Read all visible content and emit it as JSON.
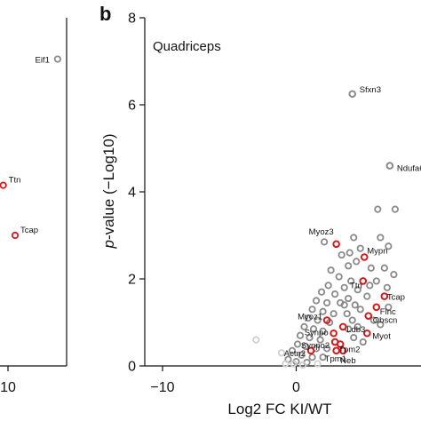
{
  "chart_data": [
    {
      "type": "scatter",
      "panel": "a",
      "x_ticks": [
        "10"
      ],
      "labeled_points": [
        {
          "label": "Eif1",
          "x": 14.2,
          "y": 7.05,
          "color": "grey"
        },
        {
          "label": "Ttn",
          "x": 9.6,
          "y": 4.15,
          "color": "red"
        },
        {
          "label": "Tcap",
          "x": 10.6,
          "y": 3.0,
          "color": "red"
        }
      ],
      "other_points": [
        {
          "x": 8.9,
          "y": 4.3,
          "color": "grey"
        }
      ]
    },
    {
      "type": "scatter",
      "panel": "b",
      "panel_label": "b",
      "title": "Quadriceps",
      "xlabel": "Log2 FC KI/WT",
      "ylabel_italic": "p",
      "ylabel_rest": "-value (−Log10)",
      "x_ticks": [
        "−10",
        "0",
        "10"
      ],
      "y_ticks": [
        "0",
        "2",
        "4",
        "6",
        "8"
      ],
      "xlim": [
        -12,
        11
      ],
      "ylim": [
        0,
        8
      ],
      "colors": {
        "grey": "#8a8a8a",
        "red": "#d7191c",
        "light": "#cfcfcf"
      },
      "labeled_points": [
        {
          "label": "Sfxn3",
          "x": 4.2,
          "y": 6.25,
          "color": "grey"
        },
        {
          "label": "Ndufa6",
          "x": 7.0,
          "y": 4.6,
          "color": "grey"
        },
        {
          "label": "Myoz3",
          "x": 3.0,
          "y": 2.8,
          "color": "red"
        },
        {
          "label": "Mypn",
          "x": 5.1,
          "y": 2.5,
          "color": "red"
        },
        {
          "label": "Ttn",
          "x": 5.0,
          "y": 1.95,
          "color": "red"
        },
        {
          "label": "Tcap",
          "x": 6.6,
          "y": 1.6,
          "color": "red"
        },
        {
          "label": "Flnc",
          "x": 6.0,
          "y": 1.35,
          "color": "red"
        },
        {
          "label": "Obscn",
          "x": 5.4,
          "y": 1.15,
          "color": "red"
        },
        {
          "label": "Myoz1",
          "x": 2.3,
          "y": 1.05,
          "color": "red"
        },
        {
          "label": "Ldb3",
          "x": 3.5,
          "y": 0.9,
          "color": "red"
        },
        {
          "label": "Myot",
          "x": 5.3,
          "y": 0.75,
          "color": "red"
        },
        {
          "label": "Synpo",
          "x": 2.8,
          "y": 0.75,
          "color": "red"
        },
        {
          "label": "Synpo2",
          "x": 2.9,
          "y": 0.55,
          "color": "red"
        },
        {
          "label": "Tpm2",
          "x": 3.3,
          "y": 0.5,
          "color": "red"
        },
        {
          "label": "Actn2",
          "x": 1.1,
          "y": 0.35,
          "color": "red"
        },
        {
          "label": "Tpm1",
          "x": 3.0,
          "y": 0.35,
          "color": "red"
        },
        {
          "label": "Neb",
          "x": 3.5,
          "y": 0.35,
          "color": "red"
        }
      ],
      "other_points": [
        {
          "x": 7.4,
          "y": 3.6,
          "color": "grey"
        },
        {
          "x": 6.1,
          "y": 3.6,
          "color": "grey"
        },
        {
          "x": 10.8,
          "y": 3.45,
          "color": "grey"
        },
        {
          "x": 6.3,
          "y": 2.95,
          "color": "grey"
        },
        {
          "x": 4.3,
          "y": 2.95,
          "color": "grey"
        },
        {
          "x": 6.9,
          "y": 2.75,
          "color": "grey"
        },
        {
          "x": 2.1,
          "y": 2.85,
          "color": "grey"
        },
        {
          "x": 3.4,
          "y": 2.55,
          "color": "grey"
        },
        {
          "x": 4.8,
          "y": 2.7,
          "color": "grey"
        },
        {
          "x": 6.6,
          "y": 2.25,
          "color": "grey"
        },
        {
          "x": 7.3,
          "y": 2.1,
          "color": "grey"
        },
        {
          "x": 3.9,
          "y": 2.3,
          "color": "grey"
        },
        {
          "x": 4.5,
          "y": 2.4,
          "color": "grey"
        },
        {
          "x": 5.6,
          "y": 2.25,
          "color": "grey"
        },
        {
          "x": 2.6,
          "y": 2.2,
          "color": "grey"
        },
        {
          "x": 3.2,
          "y": 2.05,
          "color": "grey"
        },
        {
          "x": 4.1,
          "y": 1.95,
          "color": "grey"
        },
        {
          "x": 6.0,
          "y": 1.95,
          "color": "grey"
        },
        {
          "x": 2.4,
          "y": 1.85,
          "color": "grey"
        },
        {
          "x": 3.6,
          "y": 1.8,
          "color": "grey"
        },
        {
          "x": 4.6,
          "y": 1.75,
          "color": "grey"
        },
        {
          "x": 6.8,
          "y": 1.8,
          "color": "grey"
        },
        {
          "x": 1.9,
          "y": 1.7,
          "color": "grey"
        },
        {
          "x": 2.9,
          "y": 1.65,
          "color": "grey"
        },
        {
          "x": 3.9,
          "y": 1.55,
          "color": "grey"
        },
        {
          "x": 5.3,
          "y": 1.6,
          "color": "grey"
        },
        {
          "x": 1.5,
          "y": 1.5,
          "color": "grey"
        },
        {
          "x": 2.3,
          "y": 1.45,
          "color": "grey"
        },
        {
          "x": 3.3,
          "y": 1.45,
          "color": "grey"
        },
        {
          "x": 4.4,
          "y": 1.4,
          "color": "grey"
        },
        {
          "x": 6.9,
          "y": 1.35,
          "color": "grey"
        },
        {
          "x": 1.2,
          "y": 1.3,
          "color": "grey"
        },
        {
          "x": 2.0,
          "y": 1.25,
          "color": "grey"
        },
        {
          "x": 2.8,
          "y": 1.2,
          "color": "grey"
        },
        {
          "x": 3.8,
          "y": 1.2,
          "color": "grey"
        },
        {
          "x": 4.8,
          "y": 1.3,
          "color": "grey"
        },
        {
          "x": 5.8,
          "y": 1.05,
          "color": "grey"
        },
        {
          "x": 0.9,
          "y": 1.1,
          "color": "grey"
        },
        {
          "x": 1.6,
          "y": 1.05,
          "color": "grey"
        },
        {
          "x": 2.5,
          "y": 1.0,
          "color": "grey"
        },
        {
          "x": 4.2,
          "y": 1.05,
          "color": "grey"
        },
        {
          "x": 6.3,
          "y": 0.95,
          "color": "grey"
        },
        {
          "x": 0.6,
          "y": 0.9,
          "color": "grey"
        },
        {
          "x": 1.3,
          "y": 0.85,
          "color": "grey"
        },
        {
          "x": 2.0,
          "y": 0.8,
          "color": "grey"
        },
        {
          "x": 3.9,
          "y": 0.85,
          "color": "grey"
        },
        {
          "x": 4.6,
          "y": 0.9,
          "color": "grey"
        },
        {
          "x": 0.3,
          "y": 0.7,
          "color": "grey"
        },
        {
          "x": 1.0,
          "y": 0.65,
          "color": "grey"
        },
        {
          "x": 1.8,
          "y": 0.6,
          "color": "grey"
        },
        {
          "x": 4.3,
          "y": 0.65,
          "color": "grey"
        },
        {
          "x": 0.1,
          "y": 0.5,
          "color": "grey"
        },
        {
          "x": 0.7,
          "y": 0.45,
          "color": "grey"
        },
        {
          "x": 1.5,
          "y": 0.4,
          "color": "grey"
        },
        {
          "x": 2.3,
          "y": 0.4,
          "color": "grey"
        },
        {
          "x": -0.3,
          "y": 0.35,
          "color": "grey"
        },
        {
          "x": 0.4,
          "y": 0.25,
          "color": "grey"
        },
        {
          "x": 1.2,
          "y": 0.2,
          "color": "grey"
        },
        {
          "x": 2.0,
          "y": 0.2,
          "color": "grey"
        },
        {
          "x": -0.6,
          "y": 0.15,
          "color": "grey"
        },
        {
          "x": 0.0,
          "y": 0.1,
          "color": "grey"
        },
        {
          "x": 0.8,
          "y": 0.08,
          "color": "grey"
        },
        {
          "x": 5.0,
          "y": 0.55,
          "color": "grey"
        },
        {
          "x": 3.6,
          "y": 1.4,
          "color": "grey"
        },
        {
          "x": 5.5,
          "y": 1.85,
          "color": "grey"
        },
        {
          "x": 4.0,
          "y": 2.6,
          "color": "grey"
        },
        {
          "x": -1.1,
          "y": 0.3,
          "color": "light"
        },
        {
          "x": -0.8,
          "y": 0.05,
          "color": "light"
        },
        {
          "x": -0.2,
          "y": 0.05,
          "color": "light"
        },
        {
          "x": 0.5,
          "y": 0.02,
          "color": "light"
        },
        {
          "x": -3.0,
          "y": 0.6,
          "color": "light"
        },
        {
          "x": 1.6,
          "y": 0.05,
          "color": "light"
        }
      ]
    }
  ]
}
